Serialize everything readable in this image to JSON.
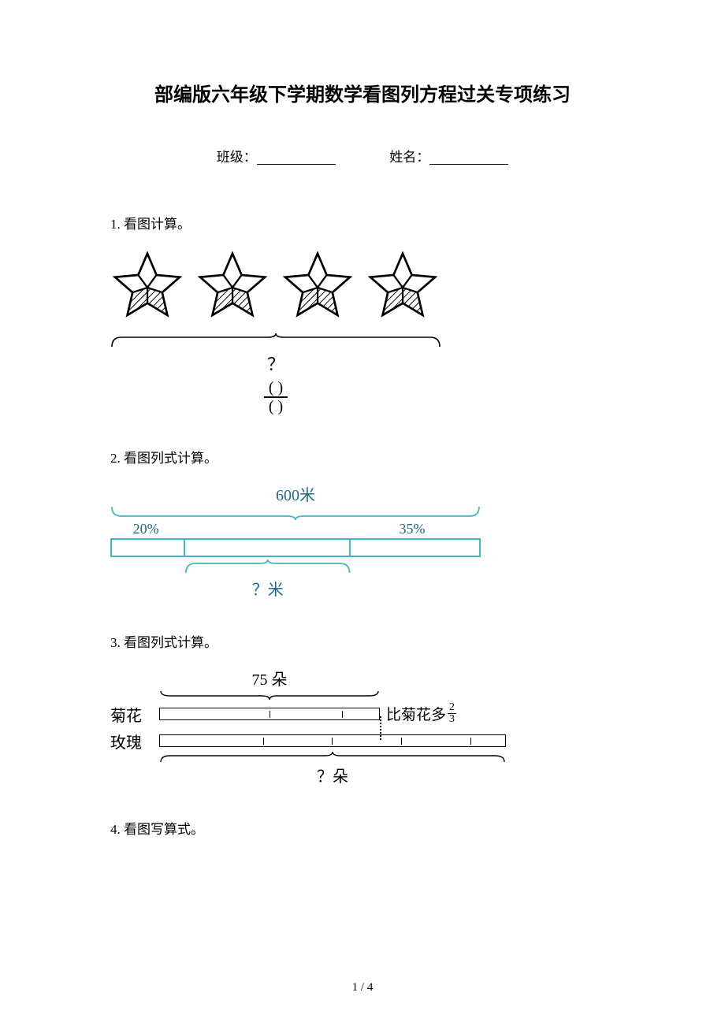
{
  "title": "部编版六年级下学期数学看图列方程过关专项练习",
  "form": {
    "class_label": "班级：",
    "name_label": "姓名："
  },
  "q1": {
    "heading": "1. 看图计算。",
    "star": {
      "count": 4,
      "size": 94,
      "stroke": "#000000",
      "stroke_width": 2.2,
      "fill_white": "#ffffff",
      "fill_hatch": "hatch"
    },
    "brace_width": 420,
    "qmark": "？",
    "fraction": {
      "num": "(      )",
      "den": "(      )"
    }
  },
  "q2": {
    "heading": "2. 看图列式计算。",
    "total_label": "600米",
    "segments": [
      {
        "label": "20%",
        "width_pct": 20
      },
      {
        "label": "",
        "width_pct": 45
      },
      {
        "label": "35%",
        "width_pct": 35
      }
    ],
    "unknown_label": "？米",
    "colors": {
      "border": "#3fb8c9",
      "text": "#1a6a8e"
    }
  },
  "q3": {
    "heading": "3. 看图列式计算。",
    "top_label": "75 朵",
    "row1_label": "菊花",
    "row2_label": "玫瑰",
    "row1_segments": 3,
    "row2_segments": 5,
    "note_prefix": "比菊花多",
    "note_frac": {
      "num": "2",
      "den": "3"
    },
    "unknown_label": "？朵"
  },
  "q4": {
    "heading": "4. 看图写算式。"
  },
  "footer": "1 / 4"
}
